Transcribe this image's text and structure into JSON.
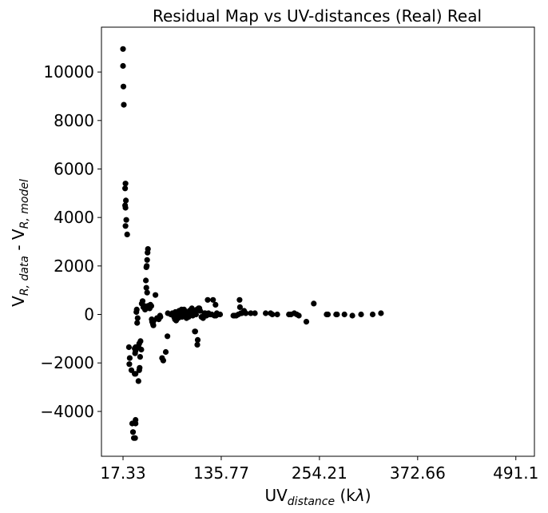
{
  "chart_data": {
    "type": "scatter",
    "title": "Residual Map vs UV-distances (Real) Real",
    "xlabel": {
      "base": "UV",
      "sub": "distance",
      "suffix": " (k",
      "greek": "λ",
      "end": ")"
    },
    "ylabel": {
      "p1": "V",
      "p1sub": "R, data",
      "mid": " - V",
      "p2sub": "R, model"
    },
    "x_ticks": [
      "17.33",
      "135.77",
      "254.21",
      "372.66",
      "491.1"
    ],
    "x_tick_values": [
      17.33,
      135.77,
      254.21,
      372.66,
      491.1
    ],
    "y_ticks": [
      "−4000",
      "−2000",
      "0",
      "2000",
      "4000",
      "6000",
      "8000",
      "10000"
    ],
    "y_tick_values": [
      -4000,
      -2000,
      0,
      2000,
      4000,
      6000,
      8000,
      10000
    ],
    "xlim": [
      -8.7,
      513.5
    ],
    "ylim": [
      -5850,
      11850
    ],
    "grid": false,
    "marker_color": "#000000",
    "points": [
      [
        17.3,
        10950
      ],
      [
        17.3,
        10250
      ],
      [
        17.8,
        9400
      ],
      [
        18.3,
        8650
      ],
      [
        20.3,
        5400
      ],
      [
        19.8,
        5200
      ],
      [
        20.8,
        4700
      ],
      [
        19.8,
        4500
      ],
      [
        20.3,
        4400
      ],
      [
        21.3,
        3900
      ],
      [
        20.3,
        3650
      ],
      [
        22.3,
        3300
      ],
      [
        24.4,
        -1350
      ],
      [
        24.9,
        -2050
      ],
      [
        25.4,
        -1800
      ],
      [
        27.4,
        -2300
      ],
      [
        28.4,
        -4500
      ],
      [
        29.4,
        -4850
      ],
      [
        30.4,
        -5100
      ],
      [
        31.9,
        -5100
      ],
      [
        32.4,
        -4500
      ],
      [
        32.4,
        -4350
      ],
      [
        31.4,
        -2450
      ],
      [
        32.4,
        -2450
      ],
      [
        31.9,
        -1600
      ],
      [
        32.4,
        -1500
      ],
      [
        32.4,
        -1350
      ],
      [
        31.4,
        -1400
      ],
      [
        33.4,
        -1400
      ],
      [
        35.9,
        -2750
      ],
      [
        36.9,
        -2300
      ],
      [
        37.4,
        -2200
      ],
      [
        36.9,
        -1200
      ],
      [
        37.9,
        -1750
      ],
      [
        38.4,
        -1100
      ],
      [
        39.4,
        -1450
      ],
      [
        35.9,
        -1300
      ],
      [
        33.4,
        100
      ],
      [
        33.9,
        200
      ],
      [
        34.9,
        -150
      ],
      [
        34.4,
        -350
      ],
      [
        39.9,
        450
      ],
      [
        40.9,
        550
      ],
      [
        41.9,
        300
      ],
      [
        42.9,
        350
      ],
      [
        43.9,
        200
      ],
      [
        44.9,
        1400
      ],
      [
        45.4,
        1950
      ],
      [
        45.9,
        2000
      ],
      [
        46.4,
        2250
      ],
      [
        46.9,
        2550
      ],
      [
        47.4,
        2700
      ],
      [
        45.4,
        1100
      ],
      [
        46.4,
        900
      ],
      [
        47.4,
        350
      ],
      [
        48.4,
        300
      ],
      [
        49.4,
        250
      ],
      [
        50.4,
        400
      ],
      [
        51.4,
        350
      ],
      [
        51.9,
        -200
      ],
      [
        52.4,
        -300
      ],
      [
        53.4,
        -400
      ],
      [
        53.9,
        -450
      ],
      [
        54.4,
        -250
      ],
      [
        56.4,
        800
      ],
      [
        58.4,
        -150
      ],
      [
        60.4,
        -200
      ],
      [
        62.4,
        -100
      ],
      [
        61.9,
        -50
      ],
      [
        64.4,
        -1800
      ],
      [
        65.9,
        -1900
      ],
      [
        68.9,
        -1550
      ],
      [
        70.9,
        -900
      ],
      [
        71.4,
        50
      ],
      [
        74.9,
        0
      ],
      [
        76.9,
        50
      ],
      [
        78.9,
        -100
      ],
      [
        79.9,
        -200
      ],
      [
        80.4,
        100
      ],
      [
        81.4,
        -250
      ],
      [
        82.9,
        -50
      ],
      [
        83.9,
        -150
      ],
      [
        84.9,
        150
      ],
      [
        85.9,
        0
      ],
      [
        86.9,
        50
      ],
      [
        87.9,
        200
      ],
      [
        88.4,
        -100
      ],
      [
        89.9,
        150
      ],
      [
        90.9,
        200
      ],
      [
        91.9,
        -50
      ],
      [
        93.4,
        100
      ],
      [
        93.9,
        -150
      ],
      [
        95.4,
        50
      ],
      [
        96.4,
        -100
      ],
      [
        97.4,
        150
      ],
      [
        98.4,
        100
      ],
      [
        99.4,
        200
      ],
      [
        100.4,
        250
      ],
      [
        101.4,
        -50
      ],
      [
        102.4,
        150
      ],
      [
        103.9,
        -700
      ],
      [
        104.4,
        -700
      ],
      [
        105.4,
        0
      ],
      [
        106.4,
        200
      ],
      [
        107.4,
        -1050
      ],
      [
        106.9,
        -1250
      ],
      [
        108.4,
        250
      ],
      [
        109.4,
        250
      ],
      [
        110.4,
        150
      ],
      [
        111.9,
        -100
      ],
      [
        113.9,
        -150
      ],
      [
        115.4,
        50
      ],
      [
        116.4,
        50
      ],
      [
        117.9,
        -50
      ],
      [
        119.4,
        600
      ],
      [
        120.4,
        50
      ],
      [
        121.4,
        0
      ],
      [
        122.9,
        0
      ],
      [
        124.4,
        0
      ],
      [
        125.9,
        600
      ],
      [
        127.4,
        -50
      ],
      [
        128.9,
        400
      ],
      [
        129.4,
        -50
      ],
      [
        130.4,
        50
      ],
      [
        131.4,
        0
      ],
      [
        134.4,
        0
      ],
      [
        150.4,
        -50
      ],
      [
        151.9,
        -50
      ],
      [
        153.9,
        -50
      ],
      [
        156.4,
        0
      ],
      [
        157.9,
        600
      ],
      [
        158.4,
        300
      ],
      [
        159.4,
        50
      ],
      [
        160.4,
        50
      ],
      [
        162.4,
        100
      ],
      [
        163.4,
        150
      ],
      [
        165.4,
        50
      ],
      [
        171.4,
        50
      ],
      [
        176.4,
        50
      ],
      [
        189.4,
        50
      ],
      [
        195.4,
        50
      ],
      [
        197.4,
        0
      ],
      [
        203.4,
        0
      ],
      [
        217.4,
        0
      ],
      [
        219.9,
        0
      ],
      [
        223.9,
        50
      ],
      [
        226.9,
        0
      ],
      [
        229.4,
        -50
      ],
      [
        238.4,
        -300
      ],
      [
        247.4,
        450
      ],
      [
        262.9,
        0
      ],
      [
        264.4,
        0
      ],
      [
        274.4,
        0
      ],
      [
        275.4,
        0
      ],
      [
        284.4,
        0
      ],
      [
        293.9,
        -50
      ],
      [
        304.4,
        0
      ],
      [
        318.4,
        0
      ],
      [
        328.4,
        50
      ]
    ]
  }
}
